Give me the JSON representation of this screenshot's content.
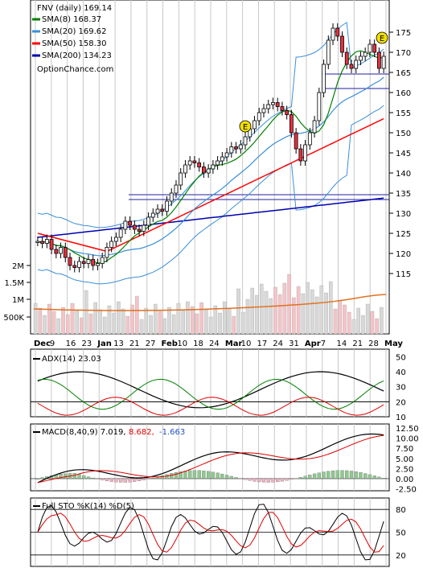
{
  "chart_data": {
    "type": "line",
    "title": "FNV (daily) 169.14",
    "watermark": "OptionChance.com",
    "x_labels": [
      "Dec",
      "9",
      "16",
      "23",
      "Jan",
      "13",
      "21",
      "27",
      "Feb",
      "10",
      "18",
      "24",
      "Mar",
      "10",
      "17",
      "24",
      "31",
      "Apr",
      "7",
      "14",
      "21",
      "28",
      "May"
    ],
    "price_panel": {
      "ylim": [
        110,
        180
      ],
      "yticks": [
        115,
        120,
        125,
        130,
        135,
        140,
        145,
        150,
        155,
        160,
        165,
        170,
        175
      ],
      "volume_ticks": [
        "2M",
        "1.5M",
        "1M",
        "500K"
      ],
      "legend": [
        {
          "label": "SMA(8) 168.37",
          "color": "#008000"
        },
        {
          "label": "SMA(20) 169.62",
          "color": "#3a8fd8"
        },
        {
          "label": "SMA(50) 158.30",
          "color": "#ff0000"
        },
        {
          "label": "SMA(200) 134.23",
          "color": "#0000b0"
        }
      ],
      "earnings_marker": "E",
      "close": [
        123,
        122.5,
        123.5,
        121,
        120,
        121.5,
        119,
        117,
        116.5,
        118,
        117.5,
        118.5,
        117,
        117.5,
        119,
        121.5,
        123,
        124,
        126,
        128,
        127,
        126,
        125.5,
        127,
        129,
        130,
        131,
        130.5,
        133,
        135,
        137,
        140,
        142,
        143,
        142.5,
        141.5,
        140,
        141,
        142,
        143,
        144,
        145,
        146.5,
        146,
        147,
        149,
        151,
        153,
        155,
        156,
        157,
        157.5,
        156.5,
        155.5,
        154.5,
        150,
        146,
        143,
        147,
        150,
        153,
        160,
        167,
        173,
        176,
        174,
        170,
        167,
        166,
        168,
        169,
        170,
        172,
        170,
        166,
        169
      ]
    },
    "adx_panel": {
      "label": "ADX(14) 23.03",
      "ylim": [
        10,
        55
      ],
      "yticks": [
        10,
        20,
        30,
        40,
        50
      ]
    },
    "macd_panel": {
      "label": "MACD(8,40,9) 7.019,",
      "signal_label": "8.682,",
      "hist_label": "-1.663",
      "ylim": [
        -3,
        13.5
      ],
      "yticks": [
        "12.50",
        "10.00",
        "7.50",
        "5.00",
        "2.50",
        "0.00",
        "-2.50"
      ]
    },
    "sto_panel": {
      "label": "Full STO %K(14) %D(5)",
      "ylim": [
        5,
        95
      ],
      "yticks": [
        20,
        50,
        80
      ]
    }
  }
}
